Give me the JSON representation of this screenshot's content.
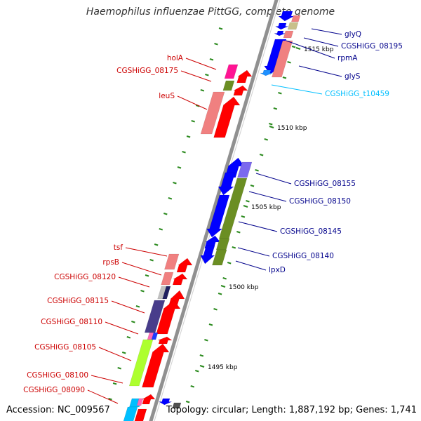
{
  "title": "Haemophilus influenzae PittGG, complete genome",
  "footer": {
    "accession": "Accession: NC_009567",
    "summary": "Topology: circular; Length: 1,887,192 bp; Genes: 1,741"
  },
  "colors": {
    "backbone": "#909090",
    "tick_green": "#2b8a1e",
    "left_label": "#cc0000",
    "right_label": "#00008b",
    "trna_label": "#00bfff"
  },
  "scale_labels": [
    "1515 kbp",
    "1510 kbp",
    "1505 kbp",
    "1500 kbp",
    "1495 kbp"
  ],
  "genes_right": [
    {
      "name": "glyQ",
      "color": "blue"
    },
    {
      "name": "CGSHiGG_08195",
      "color": "blue"
    },
    {
      "name": "rpmA",
      "color": "blue"
    },
    {
      "name": "glyS",
      "color": "blue"
    },
    {
      "name": "CGSHiGG_t10459",
      "color": "cyan"
    },
    {
      "name": "CGSHiGG_08155",
      "color": "blue"
    },
    {
      "name": "CGSHiGG_08150",
      "color": "blue"
    },
    {
      "name": "CGSHiGG_08145",
      "color": "blue"
    },
    {
      "name": "CGSHiGG_08140",
      "color": "blue"
    },
    {
      "name": "lpxD",
      "color": "blue"
    }
  ],
  "genes_left": [
    {
      "name": "holA"
    },
    {
      "name": "CGSHiGG_08175"
    },
    {
      "name": "leuS"
    },
    {
      "name": "tsf"
    },
    {
      "name": "rpsB"
    },
    {
      "name": "CGSHiGG_08120"
    },
    {
      "name": "CGSHiGG_08115"
    },
    {
      "name": "CGSHiGG_08110"
    },
    {
      "name": "CGSHiGG_08105"
    },
    {
      "name": "CGSHiGG_08100"
    },
    {
      "name": "CGSHiGG_08090"
    }
  ]
}
